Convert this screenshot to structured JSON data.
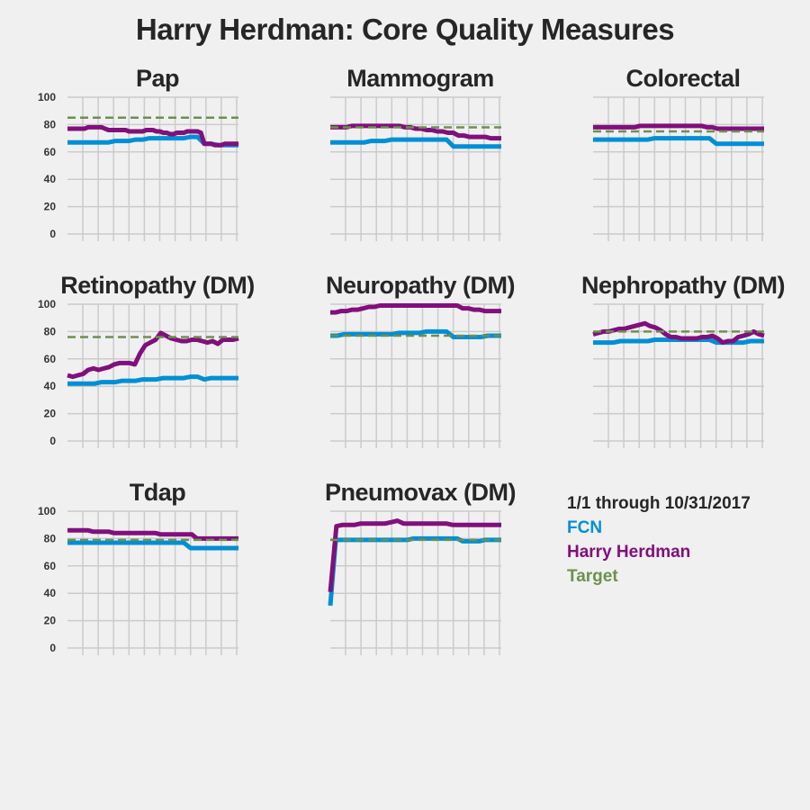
{
  "title": "Harry Herdman: Core Quality Measures",
  "legend": {
    "period": "1/1 through 10/31/2017",
    "fcn": "FCN",
    "provider": "Harry Herdman",
    "target": "Target"
  },
  "colors": {
    "fcn": "#008fd5",
    "provider": "#810f7c",
    "target": "#6d904f",
    "grid": "#cbcbcb",
    "background": "#f0f0f0"
  },
  "chart_data": [
    {
      "type": "line",
      "title": "Pap",
      "ylim": [
        0,
        100
      ],
      "yticks": [
        "0",
        "20",
        "40",
        "60",
        "80",
        "100"
      ],
      "grid": true,
      "show_yticks": true,
      "target": 85,
      "series": [
        {
          "name": "FCN",
          "values": [
            67,
            67,
            67,
            67,
            67,
            67,
            67,
            68,
            68,
            68,
            69,
            69,
            70,
            70,
            70,
            70,
            70,
            70,
            71,
            71,
            66,
            66,
            65,
            65,
            65,
            65
          ]
        },
        {
          "name": "Harry Herdman",
          "values": [
            77,
            77,
            77,
            77,
            77,
            77,
            78,
            78,
            78,
            78,
            78,
            77,
            76,
            76,
            76,
            76,
            76,
            76,
            75,
            75,
            75,
            75,
            75,
            76,
            76,
            76,
            75,
            75,
            74,
            74,
            73,
            73,
            74,
            74,
            74,
            75,
            75,
            75,
            75,
            74,
            66,
            66,
            66,
            65,
            65,
            65,
            66,
            66,
            66,
            66,
            66
          ]
        }
      ]
    },
    {
      "type": "line",
      "title": "Mammogram",
      "ylim": [
        0,
        100
      ],
      "yticks": [
        "0",
        "20",
        "40",
        "60",
        "80",
        "100"
      ],
      "grid": true,
      "show_yticks": false,
      "target": 78,
      "series": [
        {
          "name": "FCN",
          "values": [
            67,
            67,
            67,
            67,
            67,
            67,
            68,
            68,
            68,
            69,
            69,
            69,
            69,
            69,
            69,
            69,
            69,
            69,
            64,
            64,
            64,
            64,
            64,
            64,
            64,
            64
          ]
        },
        {
          "name": "Harry Herdman",
          "values": [
            78,
            78,
            78,
            78,
            79,
            79,
            79,
            79,
            79,
            79,
            79,
            79,
            79,
            79,
            78,
            78,
            77,
            77,
            76,
            76,
            75,
            75,
            74,
            74,
            72,
            72,
            71,
            71,
            71,
            71,
            70,
            70,
            70
          ]
        }
      ]
    },
    {
      "type": "line",
      "title": "Colorectal",
      "ylim": [
        0,
        100
      ],
      "yticks": [
        "0",
        "20",
        "40",
        "60",
        "80",
        "100"
      ],
      "grid": true,
      "show_yticks": false,
      "target": 75,
      "series": [
        {
          "name": "FCN",
          "values": [
            69,
            69,
            69,
            69,
            69,
            69,
            69,
            69,
            69,
            70,
            70,
            70,
            70,
            70,
            70,
            70,
            70,
            70,
            66,
            66,
            66,
            66,
            66,
            66,
            66,
            66
          ]
        },
        {
          "name": "Harry Herdman",
          "values": [
            78,
            78,
            78,
            78,
            78,
            78,
            78,
            78,
            78,
            79,
            79,
            79,
            79,
            79,
            79,
            79,
            79,
            79,
            79,
            79,
            79,
            79,
            78,
            78,
            77,
            77,
            77,
            77,
            77,
            77,
            77,
            77,
            77,
            77
          ]
        }
      ]
    },
    {
      "type": "line",
      "title": "Retinopathy (DM)",
      "ylim": [
        0,
        100
      ],
      "yticks": [
        "0",
        "20",
        "40",
        "60",
        "80",
        "100"
      ],
      "grid": true,
      "show_yticks": true,
      "target": 76,
      "series": [
        {
          "name": "FCN",
          "values": [
            42,
            42,
            42,
            42,
            42,
            43,
            43,
            43,
            44,
            44,
            44,
            45,
            45,
            45,
            46,
            46,
            46,
            46,
            47,
            47,
            45,
            46,
            46,
            46,
            46,
            46
          ]
        },
        {
          "name": "Harry Herdman",
          "values": [
            48,
            47,
            48,
            49,
            52,
            53,
            52,
            53,
            54,
            56,
            57,
            57,
            57,
            56,
            64,
            70,
            72,
            74,
            79,
            77,
            75,
            74,
            73,
            73,
            74,
            74,
            73,
            72,
            73,
            71,
            74,
            74,
            74,
            75
          ]
        }
      ]
    },
    {
      "type": "line",
      "title": "Neuropathy (DM)",
      "ylim": [
        0,
        100
      ],
      "yticks": [
        "0",
        "20",
        "40",
        "60",
        "80",
        "100"
      ],
      "grid": true,
      "show_yticks": false,
      "target": 77,
      "series": [
        {
          "name": "FCN",
          "values": [
            77,
            77,
            78,
            78,
            78,
            78,
            78,
            78,
            78,
            78,
            79,
            79,
            79,
            79,
            80,
            80,
            80,
            80,
            76,
            76,
            76,
            76,
            76,
            77,
            77,
            77
          ]
        },
        {
          "name": "Harry Herdman",
          "values": [
            94,
            94,
            95,
            95,
            96,
            96,
            97,
            98,
            98,
            99,
            99,
            99,
            99,
            99,
            99,
            99,
            99,
            99,
            99,
            99,
            99,
            99,
            99,
            99,
            97,
            97,
            96,
            96,
            95,
            95,
            95,
            95
          ]
        }
      ]
    },
    {
      "type": "line",
      "title": "Nephropathy (DM)",
      "ylim": [
        0,
        100
      ],
      "yticks": [
        "0",
        "20",
        "40",
        "60",
        "80",
        "100"
      ],
      "grid": true,
      "show_yticks": false,
      "target": 80,
      "series": [
        {
          "name": "FCN",
          "values": [
            72,
            72,
            72,
            72,
            73,
            73,
            73,
            73,
            73,
            74,
            74,
            74,
            74,
            74,
            74,
            74,
            74,
            74,
            72,
            72,
            72,
            72,
            72,
            73,
            73,
            73
          ]
        },
        {
          "name": "Harry Herdman",
          "values": [
            78,
            79,
            80,
            80,
            81,
            82,
            82,
            83,
            84,
            85,
            86,
            84,
            83,
            81,
            78,
            76,
            76,
            75,
            75,
            75,
            75,
            76,
            76,
            77,
            75,
            72,
            73,
            73,
            76,
            77,
            78,
            80,
            78,
            77
          ]
        }
      ]
    },
    {
      "type": "line",
      "title": "Tdap",
      "ylim": [
        0,
        100
      ],
      "yticks": [
        "0",
        "20",
        "40",
        "60",
        "80",
        "100"
      ],
      "grid": true,
      "show_yticks": true,
      "target": 79,
      "series": [
        {
          "name": "FCN",
          "values": [
            77,
            77,
            77,
            77,
            77,
            77,
            77,
            77,
            77,
            77,
            77,
            77,
            77,
            77,
            77,
            77,
            77,
            77,
            73,
            73,
            73,
            73,
            73,
            73,
            73,
            73
          ]
        },
        {
          "name": "Harry Herdman",
          "values": [
            86,
            86,
            86,
            86,
            86,
            85,
            85,
            85,
            85,
            84,
            84,
            84,
            84,
            84,
            84,
            84,
            84,
            84,
            83,
            83,
            83,
            83,
            83,
            83,
            83,
            80,
            80,
            80,
            80,
            80,
            80,
            80,
            80,
            80
          ]
        }
      ]
    },
    {
      "type": "line",
      "title": "Pneumovax (DM)",
      "ylim": [
        0,
        100
      ],
      "yticks": [
        "0",
        "20",
        "40",
        "60",
        "80",
        "100"
      ],
      "grid": true,
      "show_yticks": false,
      "target": 79,
      "series": [
        {
          "name": "FCN",
          "values": [
            31,
            79,
            79,
            79,
            79,
            79,
            79,
            79,
            79,
            79,
            79,
            79,
            79,
            79,
            79,
            80,
            80,
            80,
            80,
            80,
            80,
            80,
            80,
            80,
            78,
            78,
            78,
            78,
            79,
            79,
            79,
            79
          ]
        },
        {
          "name": "Harry Herdman",
          "values": [
            41,
            89,
            90,
            90,
            90,
            91,
            91,
            91,
            91,
            91,
            92,
            93,
            91,
            91,
            91,
            91,
            91,
            91,
            91,
            91,
            90,
            90,
            90,
            90,
            90,
            90,
            90,
            90,
            90
          ]
        }
      ]
    }
  ]
}
